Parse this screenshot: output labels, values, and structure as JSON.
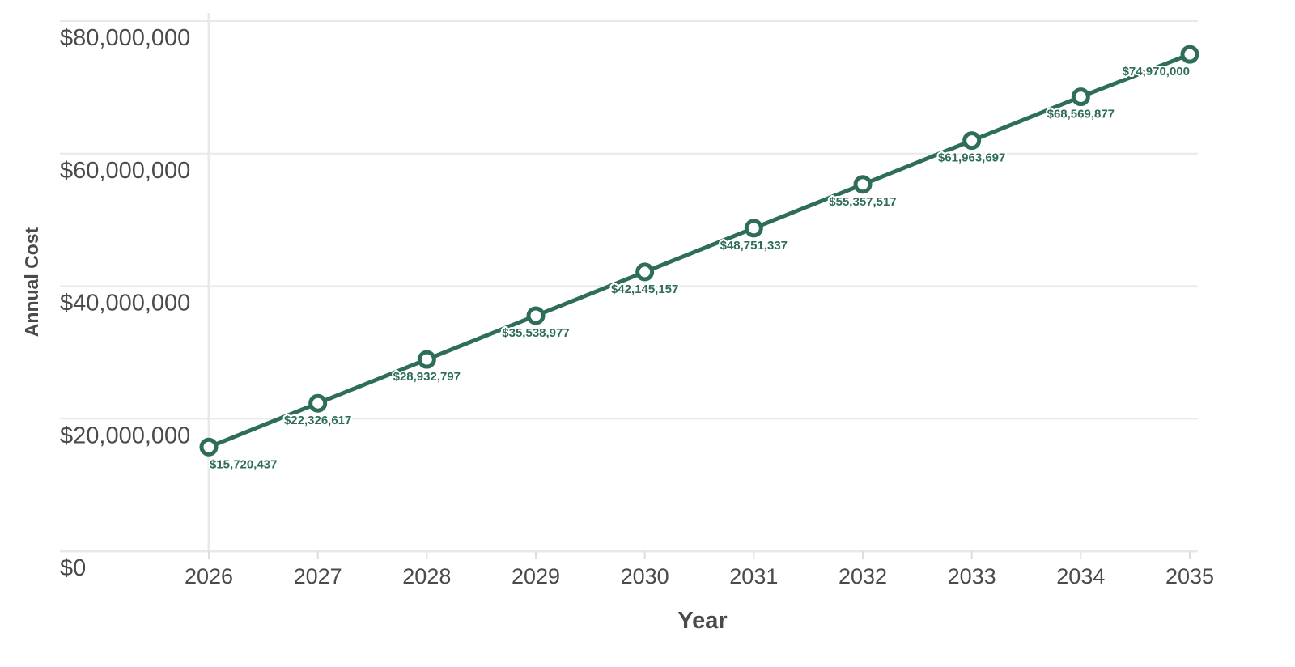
{
  "chart_data": {
    "type": "line",
    "title": "",
    "xlabel": "Year",
    "ylabel": "Annual Cost",
    "x": [
      "2026",
      "2027",
      "2028",
      "2029",
      "2030",
      "2031",
      "2032",
      "2033",
      "2034",
      "2035"
    ],
    "series": [
      {
        "values": [
          15720437,
          22326617,
          28932797,
          35538977,
          42145157,
          48751337,
          55357517,
          61963697,
          68569877,
          74970000
        ],
        "labels": [
          "$15,720,437",
          "$22,326,617",
          "$28,932,797",
          "$35,538,977",
          "$42,145,157",
          "$48,751,337",
          "$55,357,517",
          "$61,963,697",
          "$68,569,877",
          "$74,970,000"
        ],
        "color": "#2e6e58"
      }
    ],
    "ylim": [
      0,
      80000000
    ],
    "yticks": [
      0,
      20000000,
      40000000,
      60000000,
      80000000
    ],
    "ytick_labels": [
      "$0",
      "$20,000,000",
      "$40,000,000",
      "$60,000,000",
      "$80,000,000"
    ],
    "grid": true,
    "legend": "none"
  }
}
